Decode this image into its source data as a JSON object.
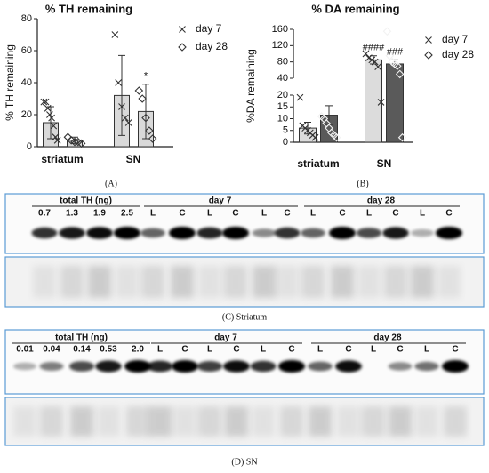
{
  "chart_data": [
    {
      "type": "bar",
      "title": "% TH remaining",
      "y_label": "% TH remaining",
      "caption": "(A)",
      "categories": [
        "striatum",
        "SN"
      ],
      "ylim": [
        0,
        80
      ],
      "yticks": [
        0,
        20,
        40,
        60,
        80
      ],
      "series": [
        {
          "name": "day 7",
          "color": "#d9d9d9",
          "marker": "x",
          "marker_color": "#333333",
          "values": [
            15,
            32
          ],
          "errors": [
            10,
            25
          ],
          "points": [
            [
              28,
              28,
              24,
              20,
              18,
              13,
              6,
              4
            ],
            [
              70,
              40,
              25,
              18,
              15
            ]
          ]
        },
        {
          "name": "day 28",
          "color": "#d9d9d9",
          "marker": "diamond",
          "marker_color": "#333333",
          "values": [
            4,
            22
          ],
          "errors": [
            2,
            17
          ],
          "points": [
            [
              6,
              4,
              3,
              3,
              2
            ],
            [
              35,
              30,
              18,
              10,
              5
            ]
          ]
        }
      ],
      "annotations": [
        {
          "text": "*",
          "series": 1,
          "category": 1
        }
      ]
    },
    {
      "type": "bar",
      "title": "% DA remaining",
      "y_label": "%DA remaining",
      "caption": "(B)",
      "categories": [
        "striatum",
        "SN"
      ],
      "y_segments": [
        {
          "ylim": [
            0,
            20
          ],
          "yticks": [
            0,
            5,
            10,
            15,
            20
          ]
        },
        {
          "ylim": [
            40,
            160
          ],
          "yticks": [
            40,
            80,
            120,
            160
          ]
        }
      ],
      "series": [
        {
          "name": "day 7",
          "color": "#dcdcdc",
          "marker": "x",
          "marker_color": "#333333",
          "values": [
            6,
            85
          ],
          "errors": [
            2.5,
            10
          ],
          "points": [
            [
              19,
              7,
              6,
              5,
              4,
              3,
              2
            ],
            [
              100,
              90,
              85,
              80,
              68,
              17
            ]
          ]
        },
        {
          "name": "day 28",
          "color": "#5a5a5a",
          "marker": "diamond",
          "marker_color": "#f2f2f2",
          "values": [
            11.5,
            75
          ],
          "errors": [
            4,
            10
          ],
          "points": [
            [
              11,
              10,
              8,
              6,
              4,
              3,
              2
            ],
            [
              155,
              95,
              80,
              75,
              70,
              50,
              2
            ]
          ]
        }
      ],
      "annotations": [
        {
          "text": "####",
          "series": 0,
          "category": 1
        },
        {
          "text": "###",
          "series": 1,
          "category": 1
        }
      ]
    }
  ],
  "blots": [
    {
      "caption": "(C) Striatum",
      "loading_header": "total TH (ng)",
      "loading_lanes": [
        "0.7",
        "1.3",
        "1.9",
        "2.5"
      ],
      "groups": [
        {
          "label": "day 7",
          "lanes": [
            "L",
            "C",
            "L",
            "C",
            "L",
            "C"
          ]
        },
        {
          "label": "day 28",
          "lanes": [
            "L",
            "C",
            "L",
            "C",
            "L",
            "C"
          ]
        }
      ]
    },
    {
      "caption": "(D) SN",
      "loading_header": "total TH (ng)",
      "loading_lanes": [
        "0.01",
        "0.04",
        "0.14",
        "0.53",
        "2.0"
      ],
      "groups": [
        {
          "label": "day 7",
          "lanes": [
            "L",
            "C",
            "L",
            "C",
            "L",
            "C"
          ]
        },
        {
          "label": "day 28",
          "lanes": [
            "L",
            "C",
            "L",
            "C",
            "L",
            "C"
          ]
        }
      ]
    }
  ]
}
